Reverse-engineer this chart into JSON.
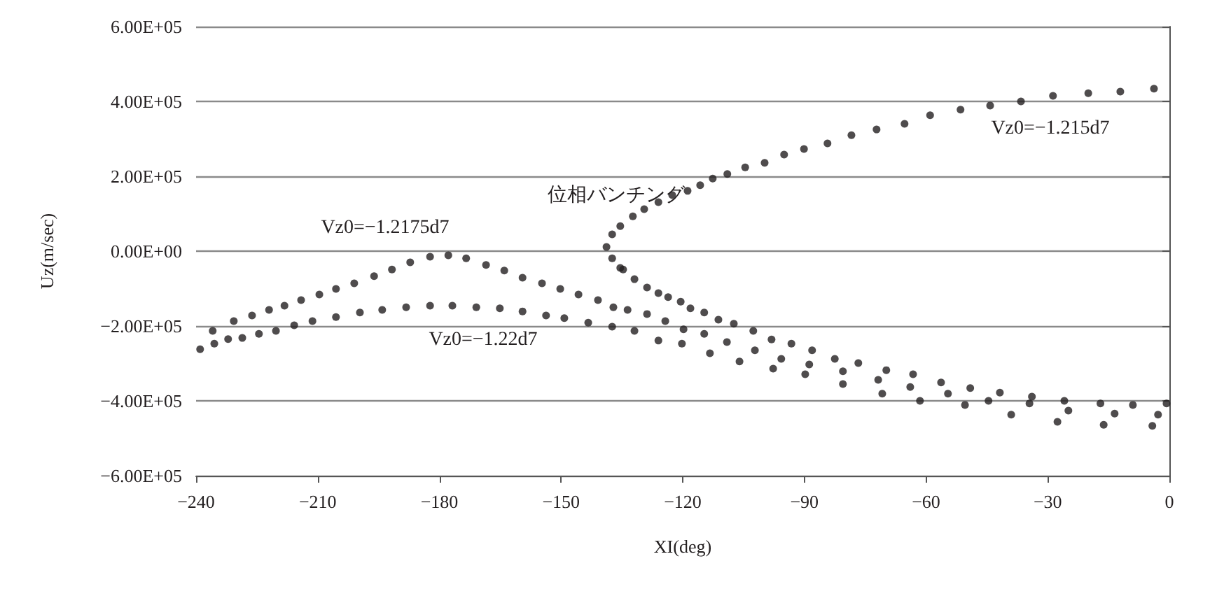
{
  "chart_data": {
    "type": "scatter",
    "xlabel": "XI(deg)",
    "ylabel": "Uz(m/sec)",
    "xlim": [
      -240,
      0
    ],
    "xticks": [
      {
        "value": -240,
        "label": "−240"
      },
      {
        "value": -210,
        "label": "−210"
      },
      {
        "value": -180,
        "label": "−180"
      },
      {
        "value": -150,
        "label": "−150"
      },
      {
        "value": -120,
        "label": "−120"
      },
      {
        "value": -90,
        "label": "−90"
      },
      {
        "value": -60,
        "label": "−60"
      },
      {
        "value": -30,
        "label": "−30"
      },
      0
    ],
    "ylim": [
      -600000,
      600000
    ],
    "yticks": [
      {
        "value": -600000,
        "label": "−6.00E+05"
      },
      {
        "value": -400000,
        "label": "−4.00E+05"
      },
      {
        "value": -200000,
        "label": "−2.00E+05"
      },
      {
        "value": 0,
        "label": "0.00E+00"
      },
      {
        "value": 200000,
        "label": "2.00E+05"
      },
      {
        "value": 400000,
        "label": "4.00E+05"
      },
      {
        "value": 600000,
        "label": "6.00E+05"
      }
    ],
    "grid": "y",
    "marker": "circle",
    "series": [
      {
        "color": "#231f20",
        "x": [
          -3.8,
          -12.1,
          -20,
          -28.7,
          -36.6,
          -44.2,
          -51.5,
          -59,
          -65.3,
          -72.2,
          -78.4,
          -84.3,
          -90.1,
          -95,
          -99.8,
          -104.6,
          -109,
          -112.6,
          -115.7,
          -118.8,
          -122.6,
          -126,
          -129.5,
          -132.3,
          -135.4,
          -137.4,
          -138.8,
          -137.4,
          -135.4,
          -134.7,
          -131.9,
          -128.8,
          -126,
          -123.6,
          -120.5,
          -118.1,
          -114.7,
          -111.2,
          -107.4,
          -102.6,
          -98.1,
          -93.2,
          -88.1,
          -82.5,
          -76.7,
          -69.8,
          -63.2,
          -56.3,
          -49.1,
          -41.8,
          -33.9,
          -25.9,
          -17,
          -9,
          -0.7
        ],
        "values": [
          434000,
          426000,
          422000,
          415000,
          400000,
          389000,
          378000,
          363000,
          340000,
          325000,
          310000,
          288000,
          273000,
          258000,
          236000,
          224000,
          206000,
          194000,
          176000,
          161000,
          150000,
          131000,
          112000,
          93000,
          67000,
          45000,
          11000,
          -19000,
          -45000,
          -49000,
          -75000,
          -97000,
          -112000,
          -123000,
          -135000,
          -153000,
          -164000,
          -183000,
          -194000,
          -213000,
          -236000,
          -247000,
          -265000,
          -288000,
          -299000,
          -318000,
          -329000,
          -351000,
          -366000,
          -378000,
          -389000,
          -400000,
          -407000,
          -411000,
          -407000
        ]
      },
      {
        "color": "#231f20",
        "x": [
          -235.9,
          -230.7,
          -226.2,
          -222,
          -218.2,
          -214.1,
          -209.6,
          -205.5,
          -201,
          -196.1,
          -191.7,
          -187.2,
          -182.3,
          -177.8,
          -173.4,
          -168.5,
          -164,
          -159.5,
          -154.7,
          -150.2,
          -145.7,
          -140.9,
          -137.1,
          -133.6,
          -128.8,
          -124.3,
          -119.8,
          -114.7,
          -109.1,
          -102.2,
          -95.7,
          -88.8,
          -80.5,
          -71.8,
          -63.9,
          -54.6,
          -44.6,
          -34.5,
          -24.9,
          -13.5,
          -2.8
        ],
        "values": [
          -213000,
          -187000,
          -172000,
          -157000,
          -146000,
          -131000,
          -116000,
          -101000,
          -86000,
          -67000,
          -49000,
          -30000,
          -15000,
          -11000,
          -19000,
          -37000,
          -52000,
          -71000,
          -86000,
          -101000,
          -116000,
          -131000,
          -150000,
          -157000,
          -168000,
          -187000,
          -209000,
          -221000,
          -243000,
          -265000,
          -288000,
          -303000,
          -321000,
          -344000,
          -363000,
          -381000,
          -400000,
          -407000,
          -426000,
          -434000,
          -437000
        ]
      },
      {
        "color": "#231f20",
        "x": [
          -239,
          -235.5,
          -232.1,
          -228.6,
          -224.5,
          -220.3,
          -215.8,
          -211.3,
          -205.5,
          -199.6,
          -194.1,
          -188.2,
          -182.3,
          -176.8,
          -170.9,
          -165.1,
          -159.5,
          -153.7,
          -149.2,
          -143.3,
          -137.4,
          -131.9,
          -126,
          -120.2,
          -113.3,
          -106,
          -97.7,
          -89.8,
          -80.5,
          -70.8,
          -61.5,
          -50.4,
          -39,
          -27.6,
          -16.2,
          -4.2
        ],
        "values": [
          -262000,
          -247000,
          -235000,
          -232000,
          -221000,
          -213000,
          -198000,
          -187000,
          -176000,
          -164000,
          -157000,
          -150000,
          -146000,
          -146000,
          -150000,
          -153000,
          -161000,
          -172000,
          -179000,
          -191000,
          -202000,
          -213000,
          -239000,
          -247000,
          -273000,
          -295000,
          -314000,
          -329000,
          -355000,
          -381000,
          -400000,
          -411000,
          -437000,
          -456000,
          -464000,
          -467000
        ]
      }
    ],
    "annotations": [
      "Vz0=−1.215d7",
      "位相バンチング",
      "Vz0=−1.2175d7",
      "Vz0=−1.22d7"
    ]
  }
}
